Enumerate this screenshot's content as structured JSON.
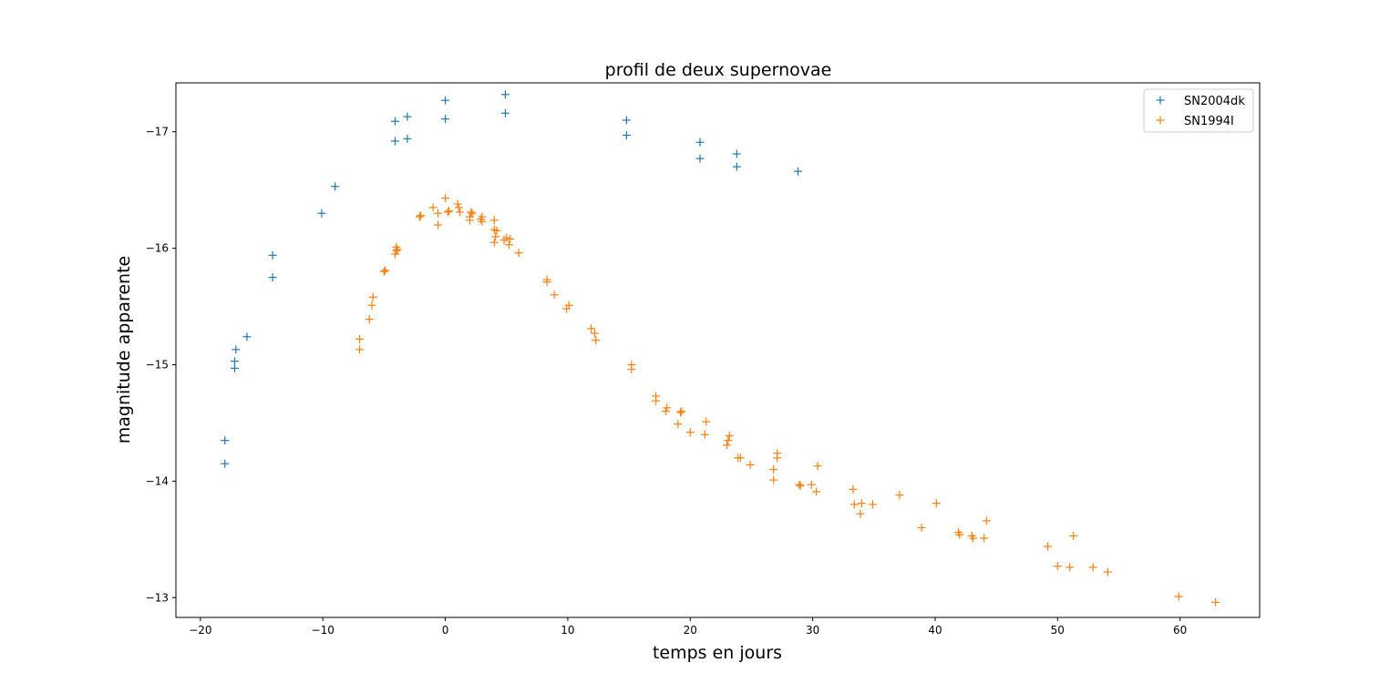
{
  "chart_data": {
    "type": "scatter",
    "title": "profil de deux supernovae",
    "xlabel": "temps en jours",
    "ylabel": "magnitude apparente",
    "xlim": [
      -22,
      66.5
    ],
    "ylim": [
      -12.83,
      -17.42
    ],
    "xticks": [
      -20,
      -10,
      0,
      10,
      20,
      30,
      40,
      50,
      60
    ],
    "xtick_labels": [
      "−20",
      "−10",
      "0",
      "10",
      "20",
      "30",
      "40",
      "50",
      "60"
    ],
    "yticks": [
      -17,
      -16,
      -15,
      -14,
      -13
    ],
    "ytick_labels": [
      "−17",
      "−16",
      "−15",
      "−14",
      "−13"
    ],
    "grid": false,
    "legend_position": "top-right",
    "series": [
      {
        "name": "SN2004dk",
        "color": "#1f77b4",
        "marker": "+",
        "points": [
          [
            -18,
            -14.15
          ],
          [
            -18,
            -14.35
          ],
          [
            -17.2,
            -14.97
          ],
          [
            -17.2,
            -15.03
          ],
          [
            -17.1,
            -15.13
          ],
          [
            -16.2,
            -15.24
          ],
          [
            -14.1,
            -15.75
          ],
          [
            -14.1,
            -15.94
          ],
          [
            -10.1,
            -16.3
          ],
          [
            -9,
            -16.53
          ],
          [
            -4.1,
            -16.92
          ],
          [
            -4.1,
            -17.09
          ],
          [
            -3.1,
            -16.94
          ],
          [
            -3.1,
            -17.13
          ],
          [
            0,
            -17.11
          ],
          [
            0,
            -17.27
          ],
          [
            4.9,
            -17.16
          ],
          [
            4.9,
            -17.32
          ],
          [
            14.8,
            -17.1
          ],
          [
            14.8,
            -16.97
          ],
          [
            20.8,
            -16.91
          ],
          [
            20.8,
            -16.77
          ],
          [
            23.8,
            -16.81
          ],
          [
            23.8,
            -16.7
          ],
          [
            28.8,
            -16.66
          ]
        ]
      },
      {
        "name": "SN1994I",
        "color": "#ff7f0e",
        "marker": "+",
        "points": [
          [
            -7,
            -15.13
          ],
          [
            -7,
            -15.22
          ],
          [
            -6.2,
            -15.39
          ],
          [
            -6,
            -15.51
          ],
          [
            -5.9,
            -15.58
          ],
          [
            -5,
            -15.8
          ],
          [
            -4.9,
            -15.81
          ],
          [
            -4.1,
            -15.95
          ],
          [
            -4,
            -15.98
          ],
          [
            -4,
            -16.01
          ],
          [
            -3.9,
            -15.99
          ],
          [
            -2.1,
            -16.27
          ],
          [
            -2,
            -16.28
          ],
          [
            -1,
            -16.35
          ],
          [
            -0.6,
            -16.2
          ],
          [
            -0.6,
            -16.3
          ],
          [
            0,
            -16.43
          ],
          [
            0.2,
            -16.31
          ],
          [
            0.3,
            -16.32
          ],
          [
            1,
            -16.38
          ],
          [
            1.1,
            -16.35
          ],
          [
            1.2,
            -16.31
          ],
          [
            2,
            -16.24
          ],
          [
            2,
            -16.27
          ],
          [
            2.1,
            -16.31
          ],
          [
            2.2,
            -16.3
          ],
          [
            2.9,
            -16.25
          ],
          [
            3,
            -16.23
          ],
          [
            3,
            -16.27
          ],
          [
            4,
            -16.05
          ],
          [
            4,
            -16.16
          ],
          [
            4.1,
            -16.1
          ],
          [
            4.2,
            -16.15
          ],
          [
            4,
            -16.24
          ],
          [
            4.8,
            -16.07
          ],
          [
            5,
            -16.09
          ],
          [
            5.2,
            -16.03
          ],
          [
            5.3,
            -16.08
          ],
          [
            6,
            -15.96
          ],
          [
            8.3,
            -15.71
          ],
          [
            8.3,
            -15.73
          ],
          [
            8.9,
            -15.6
          ],
          [
            9.9,
            -15.48
          ],
          [
            10.1,
            -15.51
          ],
          [
            11.9,
            -15.31
          ],
          [
            12.2,
            -15.27
          ],
          [
            12.3,
            -15.21
          ],
          [
            15.2,
            -14.96
          ],
          [
            15.2,
            -15
          ],
          [
            17.2,
            -14.73
          ],
          [
            17.2,
            -14.69
          ],
          [
            18,
            -14.6
          ],
          [
            18.1,
            -14.63
          ],
          [
            19,
            -14.49
          ],
          [
            19.2,
            -14.59
          ],
          [
            19.3,
            -14.6
          ],
          [
            20,
            -14.42
          ],
          [
            21.2,
            -14.4
          ],
          [
            21.3,
            -14.51
          ],
          [
            23,
            -14.31
          ],
          [
            23.1,
            -14.35
          ],
          [
            23.2,
            -14.39
          ],
          [
            23.9,
            -14.2
          ],
          [
            24.1,
            -14.2
          ],
          [
            24.9,
            -14.14
          ],
          [
            26.8,
            -14.1
          ],
          [
            26.8,
            -14.01
          ],
          [
            27.1,
            -14.2
          ],
          [
            27.1,
            -14.24
          ],
          [
            28.9,
            -13.97
          ],
          [
            29,
            -13.96
          ],
          [
            29.9,
            -13.97
          ],
          [
            30.3,
            -13.91
          ],
          [
            30.4,
            -14.13
          ],
          [
            33.3,
            -13.93
          ],
          [
            33.4,
            -13.8
          ],
          [
            33.9,
            -13.72
          ],
          [
            34,
            -13.81
          ],
          [
            34.9,
            -13.8
          ],
          [
            37.1,
            -13.88
          ],
          [
            38.9,
            -13.6
          ],
          [
            40.1,
            -13.81
          ],
          [
            41.9,
            -13.56
          ],
          [
            42,
            -13.54
          ],
          [
            43,
            -13.53
          ],
          [
            43.1,
            -13.51
          ],
          [
            44,
            -13.51
          ],
          [
            44.2,
            -13.66
          ],
          [
            49.2,
            -13.44
          ],
          [
            50,
            -13.27
          ],
          [
            51,
            -13.26
          ],
          [
            51.3,
            -13.53
          ],
          [
            52.9,
            -13.26
          ],
          [
            54.1,
            -13.22
          ],
          [
            59.9,
            -13.01
          ],
          [
            62.9,
            -12.96
          ]
        ]
      }
    ]
  }
}
